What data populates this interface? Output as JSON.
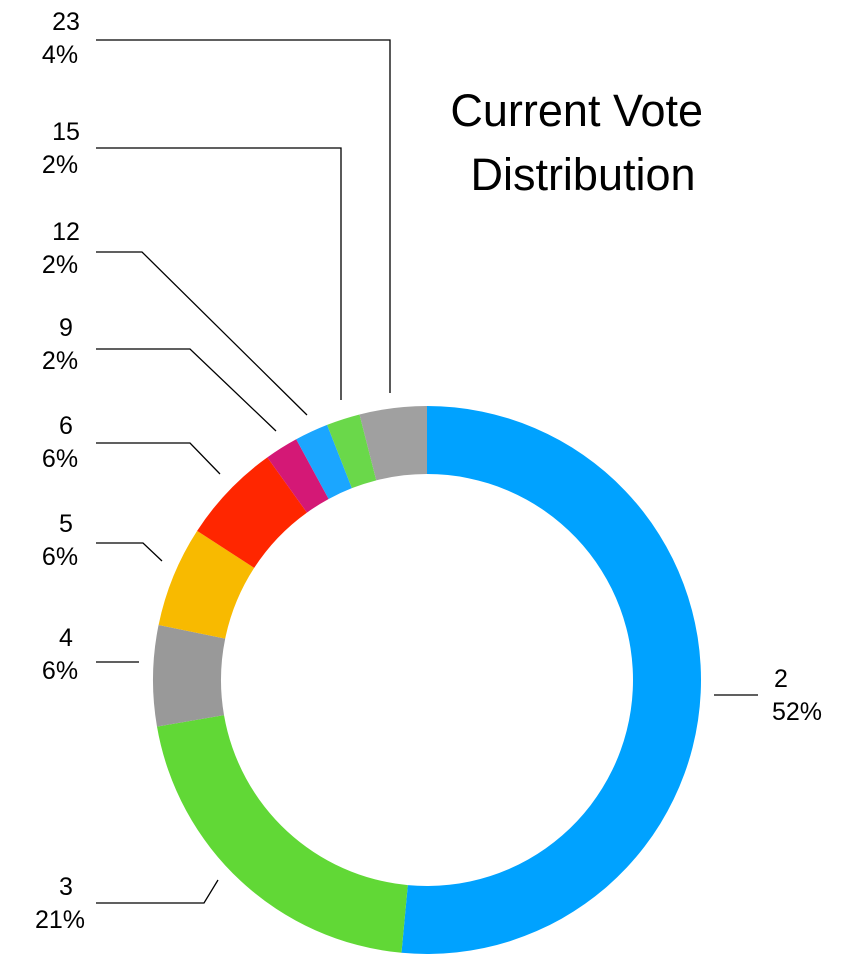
{
  "chart_data": {
    "type": "pie",
    "variant": "donut",
    "title_lines": [
      "Current Vote",
      "Distribution"
    ],
    "slices": [
      {
        "label": "2",
        "percent_label": "52%",
        "value": 52,
        "color": "#00A2FF"
      },
      {
        "label": "3",
        "percent_label": "21%",
        "value": 21,
        "color": "#61D836"
      },
      {
        "label": "4",
        "percent_label": "6%",
        "value": 6,
        "color": "#999999"
      },
      {
        "label": "5",
        "percent_label": "6%",
        "value": 6,
        "color": "#F8BA00"
      },
      {
        "label": "6",
        "percent_label": "6%",
        "value": 6,
        "color": "#FF2600"
      },
      {
        "label": "9",
        "percent_label": "2%",
        "value": 2,
        "color": "#D41876"
      },
      {
        "label": "12",
        "percent_label": "2%",
        "value": 2,
        "color": "#1BA6FF"
      },
      {
        "label": "15",
        "percent_label": "2%",
        "value": 2,
        "color": "#6AD84A"
      },
      {
        "label": "23",
        "percent_label": "4%",
        "value": 4,
        "color": "#A0A0A0"
      }
    ]
  }
}
